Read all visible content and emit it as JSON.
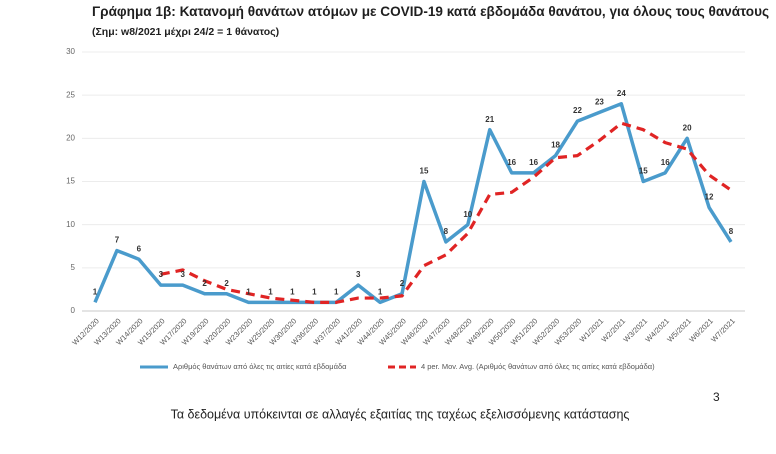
{
  "chart_data": {
    "type": "line",
    "title": "Γράφημα 1β: Κατανομή θανάτων ατόμων με COVID-19 κατά εβδομάδα θανάτου, για όλους τους θανάτους",
    "subtitle": "(Σημ: w8/2021 μέχρι 24/2 = 1 θάνατος)",
    "categories": [
      "W12/2020",
      "W13/2020",
      "W14/2020",
      "W15/2020",
      "W17/2020",
      "W19/2020",
      "W20/2020",
      "W23/2020",
      "W25/2020",
      "W30/2020",
      "W36/2020",
      "W37/2020",
      "W41/2020",
      "W44/2020",
      "W45/2020",
      "W46/2020",
      "W47/2020",
      "W48/2020",
      "W49/2020",
      "W50/2020",
      "W51/2020",
      "W52/2020",
      "W53/2020",
      "W1/2021",
      "W2/2021",
      "W3/2021",
      "W4/2021",
      "W5/2021",
      "W6/2021",
      "W7/2021"
    ],
    "series": [
      {
        "name": "Αριθμός θανάτων από όλες τις αιτίες κατά εβδομάδα",
        "color": "#4a9bcc",
        "dashed": false,
        "show_labels": true,
        "values": [
          1,
          7,
          6,
          3,
          3,
          2,
          2,
          1,
          1,
          1,
          1,
          1,
          3,
          1,
          2,
          15,
          8,
          10,
          21,
          16,
          16,
          18,
          22,
          23,
          24,
          15,
          16,
          20,
          12,
          8
        ]
      },
      {
        "name": "4 per. Mov. Avg. (Αριθμός θανάτων από όλες τις αιτίες κατά εβδομάδα)",
        "color": "#e02424",
        "dashed": true,
        "show_labels": false,
        "values": [
          null,
          null,
          null,
          4.25,
          4.75,
          3.5,
          2.5,
          2,
          1.5,
          1.25,
          1,
          1,
          1.5,
          1.5,
          1.75,
          5.25,
          6.5,
          9,
          13.5,
          13.75,
          15.5,
          17.75,
          18,
          19.75,
          21.75,
          21,
          19.5,
          18.75,
          15.75,
          14
        ]
      }
    ],
    "ylim": [
      0,
      30
    ],
    "yticks": [
      0,
      5,
      10,
      15,
      20,
      25,
      30
    ],
    "grid": true,
    "legend": "bottom",
    "footnote": "Τα δεδομένα υπόκεινται σε αλλαγές εξαιτίας της ταχέως εξελισσόμενης κατάστασης",
    "page_number": "3"
  }
}
